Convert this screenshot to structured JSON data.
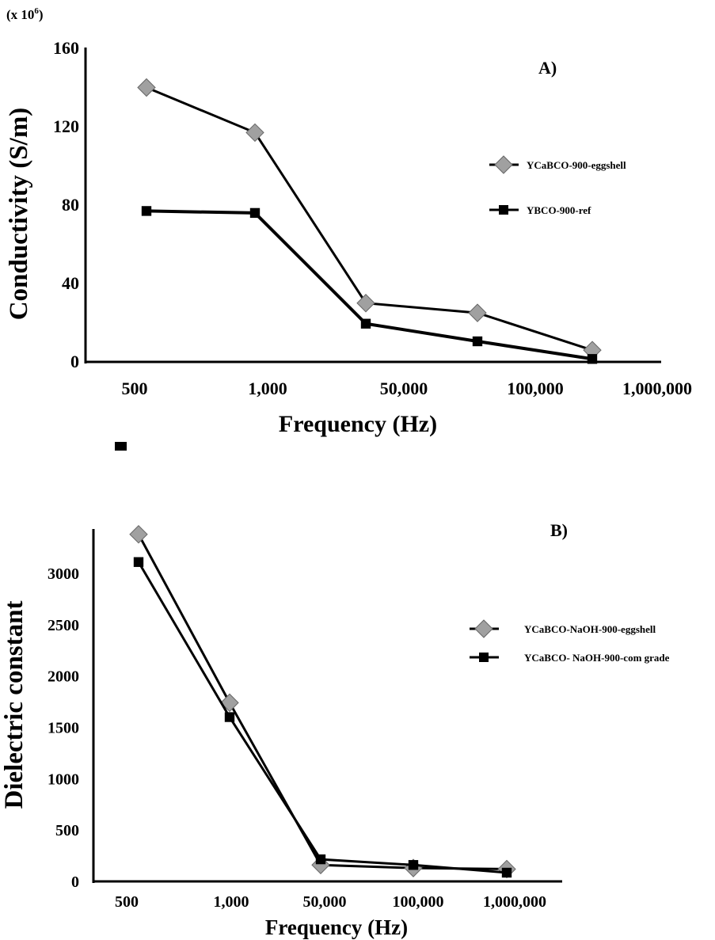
{
  "chart_data": [
    {
      "type": "line",
      "panel_label": "A)",
      "scale_note": "(x 10",
      "scale_exp": "6",
      "ylabel": "Conductivity (S/m)",
      "xlabel": "Frequency (Hz)",
      "categories": [
        "500",
        "1,000",
        "50,000",
        "100,000",
        "1,000,000"
      ],
      "ylim": [
        0,
        160
      ],
      "yticks": [
        "0",
        "40",
        "80",
        "120",
        "160"
      ],
      "grid": false,
      "legend_position": "right",
      "series": [
        {
          "name": "YCaBCO-900-eggshell",
          "marker": "diamond",
          "color": "#a0a0a0",
          "values": [
            140,
            117,
            30,
            25,
            6
          ]
        },
        {
          "name": "YBCO-900-ref",
          "marker": "square",
          "color": "#000000",
          "values": [
            77,
            76,
            19.5,
            10.5,
            1.5
          ]
        }
      ]
    },
    {
      "type": "line",
      "panel_label": "B)",
      "ylabel": "Dielectric constant",
      "xlabel": "Frequency (Hz)",
      "categories": [
        "500",
        "1,000",
        "50,000",
        "100,000",
        "1,000,000"
      ],
      "ylim": [
        0,
        3400
      ],
      "yticks": [
        "0",
        "500",
        "1000",
        "1500",
        "2000",
        "2500",
        "3000"
      ],
      "grid": false,
      "legend_position": "right",
      "series": [
        {
          "name": "YCaBCO-NaOH-900-eggshell",
          "marker": "diamond",
          "color": "#a0a0a0",
          "values": [
            3380,
            1740,
            160,
            130,
            120
          ]
        },
        {
          "name": "YCaBCO- NaOH-900-com grade",
          "marker": "square",
          "color": "#000000",
          "values": [
            3110,
            1600,
            215,
            160,
            85
          ]
        }
      ]
    }
  ]
}
